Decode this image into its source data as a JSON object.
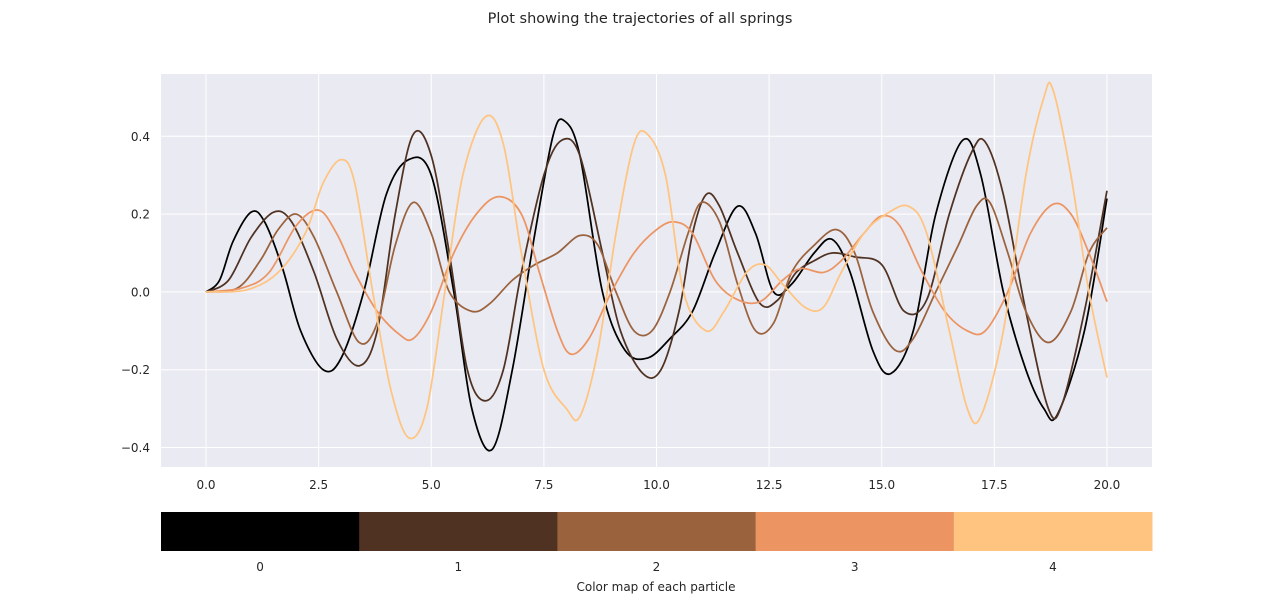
{
  "chart_data": {
    "type": "line",
    "title": "Plot showing the trajectories of all springs",
    "xlabel": "",
    "ylabel": "",
    "xlim": [
      -1.0,
      21.0
    ],
    "ylim": [
      -0.45,
      0.56
    ],
    "xticks": [
      0.0,
      2.5,
      5.0,
      7.5,
      10.0,
      12.5,
      15.0,
      17.5,
      20.0
    ],
    "xtick_labels": [
      "0.0",
      "2.5",
      "5.0",
      "7.5",
      "10.0",
      "12.5",
      "15.0",
      "17.5",
      "20.0"
    ],
    "yticks": [
      -0.4,
      -0.2,
      0.0,
      0.2,
      0.4
    ],
    "ytick_labels": [
      "−0.4",
      "−0.2",
      "0.0",
      "0.2",
      "0.4"
    ],
    "grid": true,
    "background": "#eaeaf2",
    "series": [
      {
        "color": "#000000",
        "points": [
          [
            0,
            0
          ],
          [
            0.3,
            0.03
          ],
          [
            0.6,
            0.13
          ],
          [
            1.0,
            0.205
          ],
          [
            1.3,
            0.18
          ],
          [
            1.7,
            0.06
          ],
          [
            2.1,
            -0.1
          ],
          [
            2.6,
            -0.2
          ],
          [
            3.0,
            -0.17
          ],
          [
            3.5,
            0.0
          ],
          [
            4.0,
            0.25
          ],
          [
            4.5,
            0.34
          ],
          [
            5.0,
            0.3
          ],
          [
            5.5,
            0.0
          ],
          [
            5.9,
            -0.3
          ],
          [
            6.35,
            -0.405
          ],
          [
            6.8,
            -0.2
          ],
          [
            7.3,
            0.15
          ],
          [
            7.7,
            0.4
          ],
          [
            7.95,
            0.44
          ],
          [
            8.3,
            0.35
          ],
          [
            8.8,
            0.0
          ],
          [
            9.3,
            -0.15
          ],
          [
            9.8,
            -0.17
          ],
          [
            10.3,
            -0.12
          ],
          [
            10.8,
            -0.05
          ],
          [
            11.3,
            0.1
          ],
          [
            11.8,
            0.22
          ],
          [
            12.2,
            0.15
          ],
          [
            12.6,
            0.0
          ],
          [
            13.0,
            0.02
          ],
          [
            13.5,
            0.1
          ],
          [
            13.9,
            0.135
          ],
          [
            14.3,
            0.05
          ],
          [
            14.8,
            -0.15
          ],
          [
            15.2,
            -0.21
          ],
          [
            15.7,
            -0.1
          ],
          [
            16.2,
            0.2
          ],
          [
            16.8,
            0.39
          ],
          [
            17.2,
            0.3
          ],
          [
            17.7,
            0.0
          ],
          [
            18.2,
            -0.2
          ],
          [
            18.6,
            -0.3
          ],
          [
            18.9,
            -0.315
          ],
          [
            19.5,
            -0.1
          ],
          [
            20.0,
            0.24
          ]
        ]
      },
      {
        "color": "#4f3222",
        "points": [
          [
            0,
            0
          ],
          [
            0.5,
            0.03
          ],
          [
            1.0,
            0.14
          ],
          [
            1.5,
            0.205
          ],
          [
            1.9,
            0.18
          ],
          [
            2.4,
            0.05
          ],
          [
            2.9,
            -0.12
          ],
          [
            3.4,
            -0.19
          ],
          [
            3.8,
            -0.1
          ],
          [
            4.2,
            0.2
          ],
          [
            4.6,
            0.405
          ],
          [
            5.0,
            0.35
          ],
          [
            5.4,
            0.1
          ],
          [
            5.8,
            -0.2
          ],
          [
            6.2,
            -0.28
          ],
          [
            6.6,
            -0.2
          ],
          [
            7.0,
            0.05
          ],
          [
            7.5,
            0.3
          ],
          [
            7.9,
            0.39
          ],
          [
            8.3,
            0.35
          ],
          [
            8.8,
            0.1
          ],
          [
            9.2,
            -0.1
          ],
          [
            9.7,
            -0.21
          ],
          [
            10.1,
            -0.2
          ],
          [
            10.5,
            -0.05
          ],
          [
            10.8,
            0.15
          ],
          [
            11.1,
            0.25
          ],
          [
            11.4,
            0.22
          ],
          [
            11.8,
            0.1
          ],
          [
            12.3,
            -0.03
          ],
          [
            12.7,
            -0.02
          ],
          [
            13.1,
            0.05
          ],
          [
            13.5,
            0.08
          ],
          [
            13.9,
            0.1
          ],
          [
            14.4,
            0.09
          ],
          [
            15.0,
            0.07
          ],
          [
            15.5,
            -0.05
          ],
          [
            16.0,
            -0.02
          ],
          [
            16.5,
            0.2
          ],
          [
            17.0,
            0.36
          ],
          [
            17.3,
            0.385
          ],
          [
            17.7,
            0.25
          ],
          [
            18.2,
            -0.05
          ],
          [
            18.7,
            -0.3
          ],
          [
            19.0,
            -0.29
          ],
          [
            19.5,
            -0.05
          ],
          [
            20.0,
            0.26
          ]
        ]
      },
      {
        "color": "#9a623d",
        "points": [
          [
            0,
            0
          ],
          [
            0.7,
            0.01
          ],
          [
            1.2,
            0.08
          ],
          [
            1.6,
            0.16
          ],
          [
            2.0,
            0.2
          ],
          [
            2.4,
            0.14
          ],
          [
            2.9,
            0.0
          ],
          [
            3.4,
            -0.13
          ],
          [
            3.8,
            -0.08
          ],
          [
            4.2,
            0.12
          ],
          [
            4.6,
            0.23
          ],
          [
            5.0,
            0.15
          ],
          [
            5.4,
            0.0
          ],
          [
            5.9,
            -0.05
          ],
          [
            6.3,
            -0.03
          ],
          [
            6.8,
            0.03
          ],
          [
            7.3,
            0.07
          ],
          [
            7.8,
            0.1
          ],
          [
            8.3,
            0.145
          ],
          [
            8.7,
            0.12
          ],
          [
            9.1,
            0.0
          ],
          [
            9.5,
            -0.1
          ],
          [
            9.9,
            -0.1
          ],
          [
            10.3,
            0.0
          ],
          [
            10.7,
            0.15
          ],
          [
            11.0,
            0.23
          ],
          [
            11.4,
            0.18
          ],
          [
            11.8,
            0.02
          ],
          [
            12.2,
            -0.1
          ],
          [
            12.6,
            -0.08
          ],
          [
            13.0,
            0.05
          ],
          [
            13.5,
            0.12
          ],
          [
            14.0,
            0.16
          ],
          [
            14.4,
            0.1
          ],
          [
            14.8,
            -0.05
          ],
          [
            15.3,
            -0.15
          ],
          [
            15.7,
            -0.12
          ],
          [
            16.2,
            0.0
          ],
          [
            16.7,
            0.12
          ],
          [
            17.1,
            0.22
          ],
          [
            17.4,
            0.23
          ],
          [
            17.8,
            0.1
          ],
          [
            18.2,
            -0.05
          ],
          [
            18.7,
            -0.13
          ],
          [
            19.2,
            -0.05
          ],
          [
            19.6,
            0.1
          ],
          [
            20.0,
            0.165
          ]
        ]
      },
      {
        "color": "#ec9563",
        "points": [
          [
            0,
            0
          ],
          [
            0.8,
            0.01
          ],
          [
            1.4,
            0.05
          ],
          [
            2.0,
            0.17
          ],
          [
            2.5,
            0.21
          ],
          [
            2.9,
            0.15
          ],
          [
            3.3,
            0.05
          ],
          [
            3.8,
            -0.05
          ],
          [
            4.3,
            -0.11
          ],
          [
            4.6,
            -0.12
          ],
          [
            5.0,
            -0.05
          ],
          [
            5.5,
            0.1
          ],
          [
            6.0,
            0.2
          ],
          [
            6.5,
            0.245
          ],
          [
            7.0,
            0.2
          ],
          [
            7.4,
            0.05
          ],
          [
            7.8,
            -0.1
          ],
          [
            8.1,
            -0.16
          ],
          [
            8.5,
            -0.12
          ],
          [
            9.0,
            0.0
          ],
          [
            9.5,
            0.1
          ],
          [
            10.0,
            0.16
          ],
          [
            10.4,
            0.18
          ],
          [
            10.8,
            0.15
          ],
          [
            11.3,
            0.03
          ],
          [
            11.8,
            -0.02
          ],
          [
            12.3,
            -0.025
          ],
          [
            12.8,
            0.03
          ],
          [
            13.2,
            0.06
          ],
          [
            13.7,
            0.05
          ],
          [
            14.1,
            0.08
          ],
          [
            14.6,
            0.15
          ],
          [
            15.0,
            0.195
          ],
          [
            15.4,
            0.17
          ],
          [
            15.9,
            0.05
          ],
          [
            16.4,
            -0.05
          ],
          [
            16.9,
            -0.1
          ],
          [
            17.3,
            -0.1
          ],
          [
            17.8,
            0.0
          ],
          [
            18.3,
            0.15
          ],
          [
            18.8,
            0.225
          ],
          [
            19.2,
            0.2
          ],
          [
            19.6,
            0.1
          ],
          [
            20.0,
            -0.025
          ]
        ]
      },
      {
        "color": "#ffc480",
        "points": [
          [
            0,
            0
          ],
          [
            0.9,
            0.005
          ],
          [
            1.6,
            0.05
          ],
          [
            2.2,
            0.15
          ],
          [
            2.6,
            0.28
          ],
          [
            3.0,
            0.34
          ],
          [
            3.3,
            0.28
          ],
          [
            3.7,
            0.0
          ],
          [
            4.1,
            -0.25
          ],
          [
            4.5,
            -0.375
          ],
          [
            4.9,
            -0.3
          ],
          [
            5.3,
            0.0
          ],
          [
            5.7,
            0.3
          ],
          [
            6.2,
            0.45
          ],
          [
            6.6,
            0.38
          ],
          [
            7.0,
            0.1
          ],
          [
            7.5,
            -0.2
          ],
          [
            8.0,
            -0.3
          ],
          [
            8.3,
            -0.32
          ],
          [
            8.7,
            -0.15
          ],
          [
            9.1,
            0.15
          ],
          [
            9.5,
            0.38
          ],
          [
            9.8,
            0.405
          ],
          [
            10.2,
            0.3
          ],
          [
            10.6,
            0.0
          ],
          [
            11.1,
            -0.1
          ],
          [
            11.5,
            -0.05
          ],
          [
            12.0,
            0.05
          ],
          [
            12.4,
            0.07
          ],
          [
            12.8,
            0.02
          ],
          [
            13.3,
            -0.04
          ],
          [
            13.7,
            -0.04
          ],
          [
            14.1,
            0.05
          ],
          [
            14.6,
            0.15
          ],
          [
            15.1,
            0.2
          ],
          [
            15.6,
            0.22
          ],
          [
            16.0,
            0.15
          ],
          [
            16.5,
            -0.1
          ],
          [
            16.9,
            -0.3
          ],
          [
            17.2,
            -0.32
          ],
          [
            17.7,
            -0.1
          ],
          [
            18.2,
            0.3
          ],
          [
            18.6,
            0.5
          ],
          [
            18.8,
            0.52
          ],
          [
            19.2,
            0.3
          ],
          [
            19.6,
            0.0
          ],
          [
            20.0,
            -0.22
          ]
        ]
      }
    ]
  },
  "colorbar": {
    "colors": [
      "#000000",
      "#4f3222",
      "#9a623d",
      "#ec9563",
      "#ffc480"
    ],
    "tick_labels": [
      "0",
      "1",
      "2",
      "3",
      "4"
    ],
    "label": "Color map of each particle"
  }
}
